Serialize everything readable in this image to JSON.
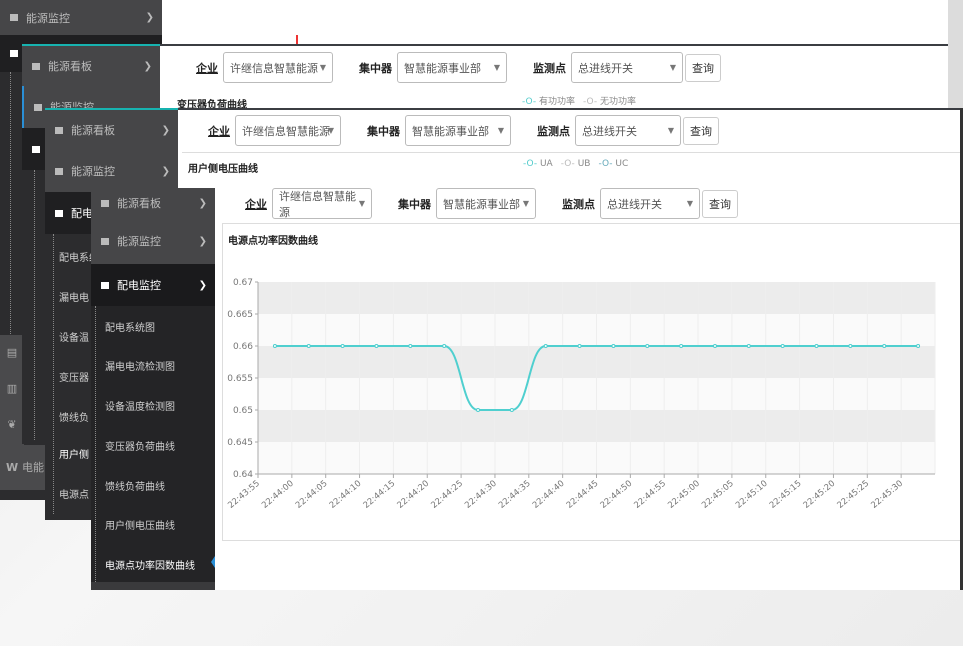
{
  "colors": {
    "accent": "#17b3b0",
    "line": "#4fcfcf",
    "sidebar": "#2c2c2e"
  },
  "layer1": {
    "menu_top": "能源监控",
    "bottom_item": "电能"
  },
  "menus": {
    "board": "能源看板",
    "monitor": "能源监控",
    "distribution": "配电监控"
  },
  "submenu": [
    "配电系统图",
    "漏电电流检测图",
    "设备温度检测图",
    "变压器负荷曲线",
    "馈线负荷曲线",
    "用户侧电压曲线",
    "电源点功率因数曲线"
  ],
  "submenu_short": [
    "配电系统",
    "漏电电",
    "设备温",
    "变压器",
    "馈线负",
    "用户侧",
    "电源点"
  ],
  "filters": {
    "company_label": "企业",
    "company_value": "许继信息智慧能源",
    "concentrator_label": "集中器",
    "concentrator_value": "智慧能源事业部",
    "point_label": "监测点",
    "point_value": "总进线开关",
    "query": "查询"
  },
  "panel2": {
    "title": "变压器负荷曲线",
    "legend": [
      "有功功率",
      "无功功率"
    ]
  },
  "panel3": {
    "title": "用户侧电压曲线",
    "legend": [
      "UA",
      "UB",
      "UC"
    ]
  },
  "panel4": {
    "title": "电源点功率因数曲线"
  },
  "chart_data": {
    "type": "line",
    "title": "电源点功率因数曲线",
    "categories": [
      "22:43:55",
      "22:44:00",
      "22:44:05",
      "22:44:10",
      "22:44:15",
      "22:44:20",
      "22:44:25",
      "22:44:30",
      "22:44:35",
      "22:44:40",
      "22:44:45",
      "22:44:50",
      "22:44:55",
      "22:45:00",
      "22:45:05",
      "22:45:10",
      "22:45:15",
      "22:45:20",
      "22:45:25",
      "22:45:30"
    ],
    "values": [
      0.66,
      0.66,
      0.66,
      0.66,
      0.66,
      0.66,
      0.65,
      0.65,
      0.66,
      0.66,
      0.66,
      0.66,
      0.66,
      0.66,
      0.66,
      0.66,
      0.66,
      0.66,
      0.66,
      0.66
    ],
    "ylim": [
      0.64,
      0.67
    ],
    "yticks": [
      "0.64",
      "0.645",
      "0.65",
      "0.655",
      "0.66",
      "0.665",
      "0.67"
    ],
    "smooth": true,
    "banded_grid": true
  }
}
